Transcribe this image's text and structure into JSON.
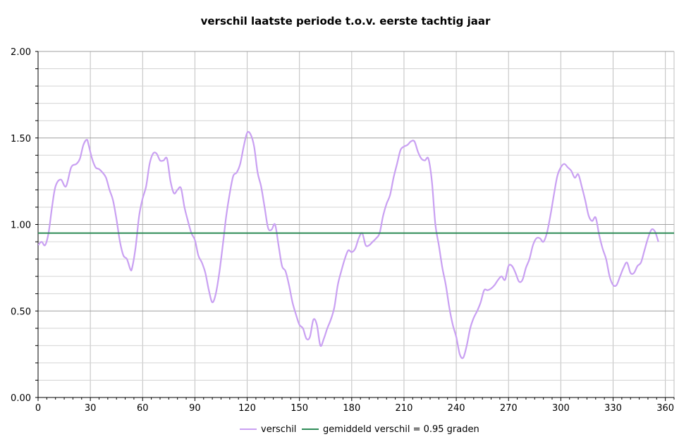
{
  "chart_data": {
    "type": "line",
    "title": "verschil laatste periode t.o.v. eerste tachtig jaar",
    "xlabel": "",
    "ylabel": "",
    "xlim": [
      0,
      365
    ],
    "ylim": [
      0,
      2.0
    ],
    "x_ticks": [
      "0",
      "30",
      "60",
      "90",
      "120",
      "150",
      "180",
      "210",
      "240",
      "270",
      "300",
      "330",
      "360"
    ],
    "y_ticks": [
      "0.00",
      "0.50",
      "1.00",
      "1.50",
      "2.00"
    ],
    "grid": true,
    "legend_position": "bottom",
    "series": [
      {
        "name": "verschil",
        "color": "#c9a0f2",
        "points": [
          [
            0,
            0.88
          ],
          [
            2,
            0.9
          ],
          [
            4,
            0.88
          ],
          [
            6,
            0.95
          ],
          [
            8,
            1.1
          ],
          [
            10,
            1.22
          ],
          [
            13,
            1.26
          ],
          [
            16,
            1.22
          ],
          [
            19,
            1.33
          ],
          [
            22,
            1.35
          ],
          [
            24,
            1.38
          ],
          [
            26,
            1.46
          ],
          [
            28,
            1.49
          ],
          [
            29,
            1.46
          ],
          [
            31,
            1.38
          ],
          [
            33,
            1.33
          ],
          [
            35,
            1.32
          ],
          [
            37,
            1.3
          ],
          [
            39,
            1.27
          ],
          [
            41,
            1.2
          ],
          [
            43,
            1.14
          ],
          [
            45,
            1.03
          ],
          [
            47,
            0.9
          ],
          [
            49,
            0.82
          ],
          [
            51,
            0.8
          ],
          [
            53,
            0.74
          ],
          [
            54,
            0.75
          ],
          [
            56,
            0.87
          ],
          [
            58,
            1.05
          ],
          [
            60,
            1.15
          ],
          [
            62,
            1.22
          ],
          [
            64,
            1.35
          ],
          [
            66,
            1.41
          ],
          [
            68,
            1.41
          ],
          [
            70,
            1.37
          ],
          [
            72,
            1.37
          ],
          [
            74,
            1.38
          ],
          [
            76,
            1.25
          ],
          [
            78,
            1.18
          ],
          [
            80,
            1.2
          ],
          [
            82,
            1.21
          ],
          [
            84,
            1.1
          ],
          [
            86,
            1.02
          ],
          [
            88,
            0.95
          ],
          [
            90,
            0.91
          ],
          [
            92,
            0.82
          ],
          [
            94,
            0.78
          ],
          [
            96,
            0.72
          ],
          [
            98,
            0.62
          ],
          [
            100,
            0.55
          ],
          [
            102,
            0.6
          ],
          [
            104,
            0.72
          ],
          [
            106,
            0.88
          ],
          [
            108,
            1.05
          ],
          [
            110,
            1.18
          ],
          [
            112,
            1.28
          ],
          [
            114,
            1.3
          ],
          [
            116,
            1.35
          ],
          [
            118,
            1.45
          ],
          [
            120,
            1.53
          ],
          [
            122,
            1.52
          ],
          [
            124,
            1.45
          ],
          [
            126,
            1.3
          ],
          [
            128,
            1.22
          ],
          [
            130,
            1.1
          ],
          [
            132,
            0.98
          ],
          [
            134,
            0.97
          ],
          [
            136,
            1.0
          ],
          [
            138,
            0.88
          ],
          [
            140,
            0.76
          ],
          [
            142,
            0.73
          ],
          [
            144,
            0.65
          ],
          [
            146,
            0.55
          ],
          [
            148,
            0.48
          ],
          [
            150,
            0.42
          ],
          [
            152,
            0.4
          ],
          [
            154,
            0.34
          ],
          [
            156,
            0.35
          ],
          [
            158,
            0.45
          ],
          [
            160,
            0.42
          ],
          [
            162,
            0.3
          ],
          [
            164,
            0.34
          ],
          [
            166,
            0.4
          ],
          [
            168,
            0.45
          ],
          [
            170,
            0.52
          ],
          [
            172,
            0.65
          ],
          [
            174,
            0.73
          ],
          [
            176,
            0.8
          ],
          [
            178,
            0.85
          ],
          [
            180,
            0.84
          ],
          [
            182,
            0.86
          ],
          [
            184,
            0.92
          ],
          [
            186,
            0.95
          ],
          [
            188,
            0.88
          ],
          [
            190,
            0.88
          ],
          [
            192,
            0.9
          ],
          [
            194,
            0.92
          ],
          [
            196,
            0.95
          ],
          [
            198,
            1.05
          ],
          [
            200,
            1.12
          ],
          [
            202,
            1.17
          ],
          [
            204,
            1.27
          ],
          [
            206,
            1.35
          ],
          [
            208,
            1.43
          ],
          [
            210,
            1.45
          ],
          [
            212,
            1.46
          ],
          [
            214,
            1.48
          ],
          [
            216,
            1.48
          ],
          [
            218,
            1.42
          ],
          [
            220,
            1.38
          ],
          [
            222,
            1.37
          ],
          [
            224,
            1.38
          ],
          [
            226,
            1.25
          ],
          [
            228,
            1.0
          ],
          [
            230,
            0.88
          ],
          [
            232,
            0.75
          ],
          [
            234,
            0.65
          ],
          [
            236,
            0.52
          ],
          [
            238,
            0.42
          ],
          [
            240,
            0.35
          ],
          [
            242,
            0.25
          ],
          [
            244,
            0.23
          ],
          [
            246,
            0.3
          ],
          [
            248,
            0.4
          ],
          [
            250,
            0.46
          ],
          [
            252,
            0.5
          ],
          [
            254,
            0.55
          ],
          [
            256,
            0.62
          ],
          [
            258,
            0.62
          ],
          [
            260,
            0.63
          ],
          [
            262,
            0.65
          ],
          [
            264,
            0.68
          ],
          [
            266,
            0.7
          ],
          [
            268,
            0.68
          ],
          [
            270,
            0.76
          ],
          [
            272,
            0.76
          ],
          [
            274,
            0.72
          ],
          [
            276,
            0.67
          ],
          [
            278,
            0.68
          ],
          [
            280,
            0.75
          ],
          [
            282,
            0.8
          ],
          [
            284,
            0.88
          ],
          [
            286,
            0.92
          ],
          [
            288,
            0.92
          ],
          [
            290,
            0.9
          ],
          [
            292,
            0.95
          ],
          [
            294,
            1.05
          ],
          [
            296,
            1.17
          ],
          [
            298,
            1.28
          ],
          [
            300,
            1.33
          ],
          [
            302,
            1.35
          ],
          [
            304,
            1.33
          ],
          [
            306,
            1.31
          ],
          [
            308,
            1.27
          ],
          [
            310,
            1.29
          ],
          [
            312,
            1.22
          ],
          [
            314,
            1.14
          ],
          [
            316,
            1.05
          ],
          [
            318,
            1.02
          ],
          [
            320,
            1.04
          ],
          [
            322,
            0.94
          ],
          [
            324,
            0.86
          ],
          [
            326,
            0.8
          ],
          [
            328,
            0.7
          ],
          [
            330,
            0.65
          ],
          [
            332,
            0.65
          ],
          [
            334,
            0.7
          ],
          [
            336,
            0.75
          ],
          [
            338,
            0.78
          ],
          [
            340,
            0.72
          ],
          [
            342,
            0.72
          ],
          [
            344,
            0.76
          ],
          [
            346,
            0.78
          ],
          [
            348,
            0.85
          ],
          [
            350,
            0.92
          ],
          [
            352,
            0.97
          ],
          [
            354,
            0.96
          ],
          [
            356,
            0.9
          ]
        ]
      },
      {
        "name": "gemiddeld verschil = 0.95 graden",
        "color": "#2e8b57",
        "points": [
          [
            0,
            0.95
          ],
          [
            365,
            0.95
          ]
        ]
      }
    ]
  }
}
